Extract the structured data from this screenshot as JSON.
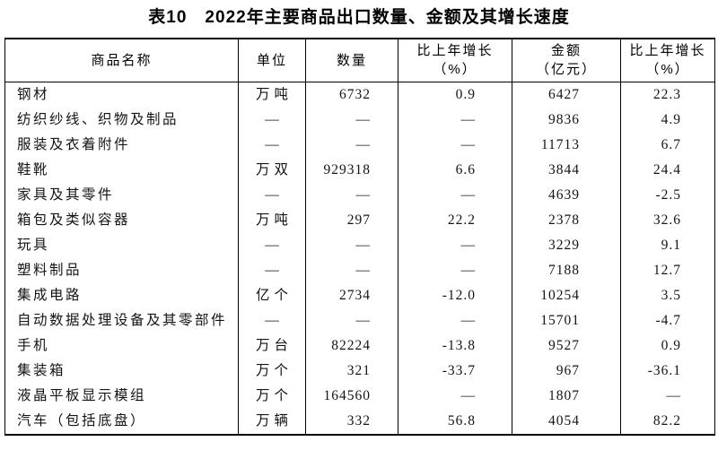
{
  "page": {
    "background": "#ffffff",
    "text_color": "#000000",
    "border_color": "#000000"
  },
  "title": "表10　2022年主要商品出口数量、金额及其增长速度",
  "table": {
    "headers": {
      "commodity": "商品名称",
      "unit": "单位",
      "quantity": "数量",
      "quantity_growth": "比上年增长",
      "quantity_growth_sub": "（%）",
      "amount": "金额",
      "amount_sub": "（亿元）",
      "amount_growth": "比上年增长",
      "amount_growth_sub": "（%）"
    },
    "rows": [
      [
        "钢材",
        "万吨",
        "6732",
        "0.9",
        "6427",
        "22.3"
      ],
      [
        "纺织纱线、织物及制品",
        "—",
        "—",
        "—",
        "9836",
        "4.9"
      ],
      [
        "服装及衣着附件",
        "—",
        "—",
        "—",
        "11713",
        "6.7"
      ],
      [
        "鞋靴",
        "万双",
        "929318",
        "6.6",
        "3844",
        "24.4"
      ],
      [
        "家具及其零件",
        "—",
        "—",
        "—",
        "4639",
        "-2.5"
      ],
      [
        "箱包及类似容器",
        "万吨",
        "297",
        "22.2",
        "2378",
        "32.6"
      ],
      [
        "玩具",
        "—",
        "—",
        "—",
        "3229",
        "9.1"
      ],
      [
        "塑料制品",
        "—",
        "—",
        "—",
        "7188",
        "12.7"
      ],
      [
        "集成电路",
        "亿个",
        "2734",
        "-12.0",
        "10254",
        "3.5"
      ],
      [
        "自动数据处理设备及其零部件",
        "—",
        "—",
        "—",
        "15701",
        "-4.7"
      ],
      [
        "手机",
        "万台",
        "82224",
        "-13.8",
        "9527",
        "0.9"
      ],
      [
        "集装箱",
        "万个",
        "321",
        "-33.7",
        "967",
        "-36.1"
      ],
      [
        "液晶平板显示模组",
        "万个",
        "164560",
        "—",
        "1807",
        "—"
      ],
      [
        "汽车（包括底盘）",
        "万辆",
        "332",
        "56.8",
        "4054",
        "82.2"
      ]
    ]
  }
}
